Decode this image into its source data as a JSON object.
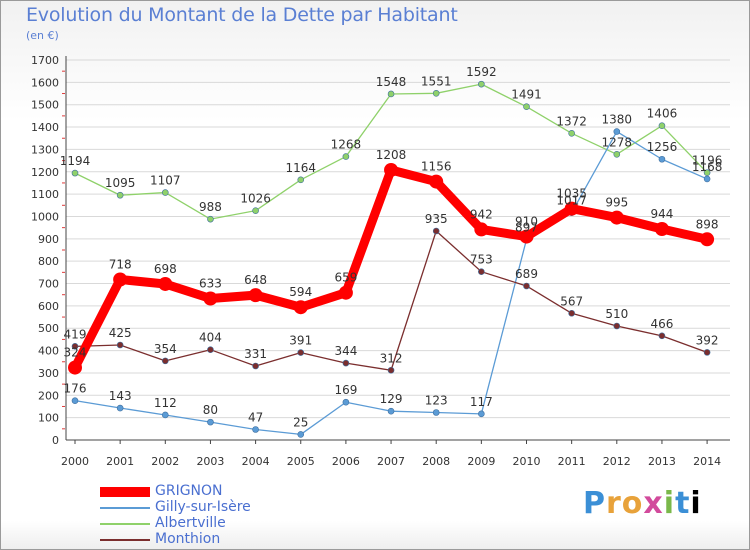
{
  "header": {
    "title": "Evolution du Montant de la Dette par Habitant",
    "subtitle": "(en €)"
  },
  "logo": {
    "text": "Proxiti"
  },
  "chart_data": {
    "type": "line",
    "title": "Evolution du Montant de la Dette par Habitant",
    "subtitle": "(en €)",
    "x": [
      "2000",
      "2001",
      "2002",
      "2003",
      "2004",
      "2005",
      "2006",
      "2007",
      "2008",
      "2009",
      "2010",
      "2011",
      "2012",
      "2013",
      "2014"
    ],
    "y_ticks": [
      "0",
      "100",
      "200",
      "300",
      "400",
      "500",
      "600",
      "700",
      "800",
      "900",
      "1000",
      "1100",
      "1200",
      "1300",
      "1400",
      "1500",
      "1600",
      "1700"
    ],
    "ylim": [
      0,
      1700
    ],
    "grid": "horizontal",
    "legend_position": "bottom-left",
    "series": [
      {
        "name": "GRIGNON",
        "color": "#ff0000",
        "values": [
          324,
          718,
          698,
          633,
          648,
          594,
          659,
          1208,
          1156,
          942,
          910,
          1035,
          995,
          944,
          898
        ],
        "labels": [
          "324",
          "718",
          "698",
          "633",
          "648",
          "594",
          "659",
          "1208",
          "1156",
          "942",
          "910",
          "1035",
          "995",
          "944",
          "898"
        ]
      },
      {
        "name": "Gilly-sur-Isère",
        "color": "#5b9bd5",
        "values": [
          176,
          143,
          112,
          80,
          47,
          25,
          169,
          129,
          123,
          117,
          897,
          1017,
          1380,
          1256,
          1168
        ],
        "labels": [
          "176",
          "143",
          "112",
          "80",
          "47",
          "25",
          "169",
          "129",
          "123",
          "117",
          "897",
          "1017",
          "1380",
          "1256",
          "1168"
        ]
      },
      {
        "name": "Albertville",
        "color": "#8fd16a",
        "values": [
          1194,
          1095,
          1107,
          988,
          1026,
          1164,
          1268,
          1548,
          1551,
          1592,
          1491,
          1372,
          1278,
          1406,
          1196
        ],
        "labels": [
          "1194",
          "1095",
          "1107",
          "988",
          "1026",
          "1164",
          "1268",
          "1548",
          "1551",
          "1592",
          "1491",
          "1372",
          "1278",
          "1406",
          "1196"
        ]
      },
      {
        "name": "Monthion",
        "color": "#7b2e2e",
        "values": [
          419,
          425,
          354,
          404,
          331,
          391,
          344,
          312,
          935,
          753,
          689,
          567,
          510,
          466,
          392
        ],
        "labels": [
          "419",
          "425",
          "354",
          "404",
          "331",
          "391",
          "344",
          "312",
          "935",
          "753",
          "689",
          "567",
          "510",
          "466",
          "392"
        ]
      }
    ]
  }
}
